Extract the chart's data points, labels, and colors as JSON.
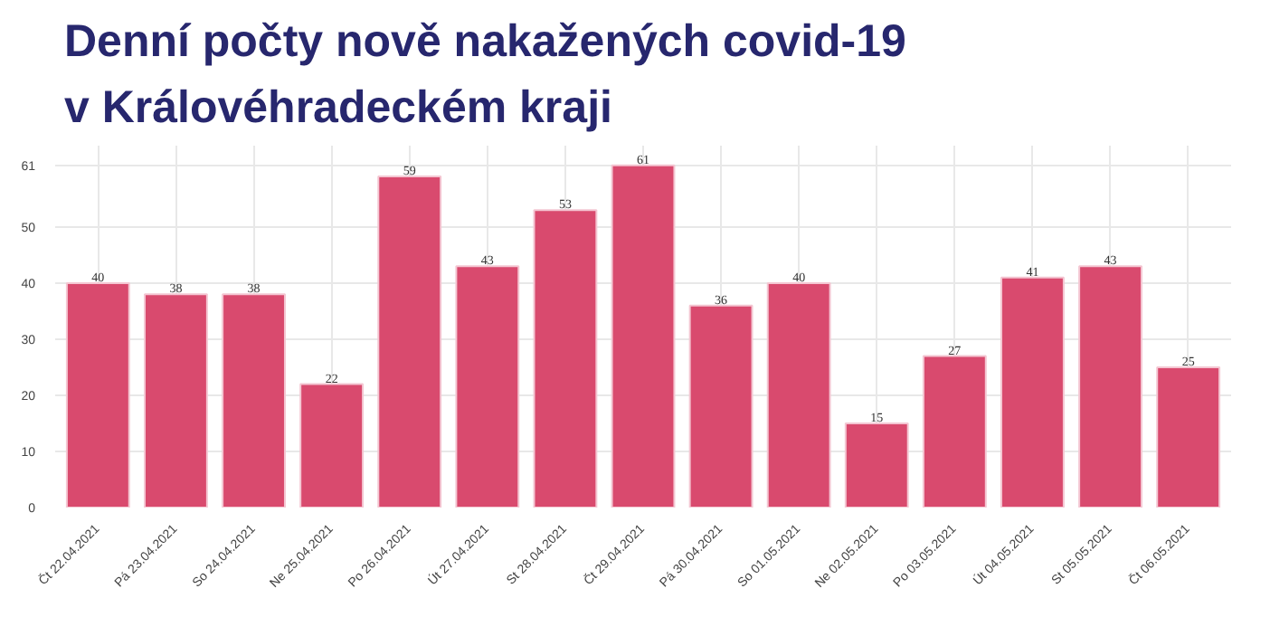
{
  "chart_data": {
    "type": "bar",
    "title": "Denní počty nově nakažených covid-19\nv Královéhradeckém kraji",
    "categories": [
      "Čt 22.04.2021",
      "Pá 23.04.2021",
      "So 24.04.2021",
      "Ne 25.04.2021",
      "Po 26.04.2021",
      "Út 27.04.2021",
      "St 28.04.2021",
      "Čt 29.04.2021",
      "Pá 30.04.2021",
      "So 01.05.2021",
      "Ne 02.05.2021",
      "Po 03.05.2021",
      "Út 04.05.2021",
      "St 05.05.2021",
      "Čt 06.05.2021"
    ],
    "values": [
      40,
      38,
      38,
      22,
      59,
      43,
      53,
      61,
      36,
      40,
      15,
      27,
      41,
      43,
      25
    ],
    "color": "#d94a6e",
    "ylim": [
      0,
      64.5
    ],
    "yticks": [
      0,
      10,
      20,
      30,
      40,
      50,
      61
    ],
    "grid": true,
    "data_labels": true
  }
}
